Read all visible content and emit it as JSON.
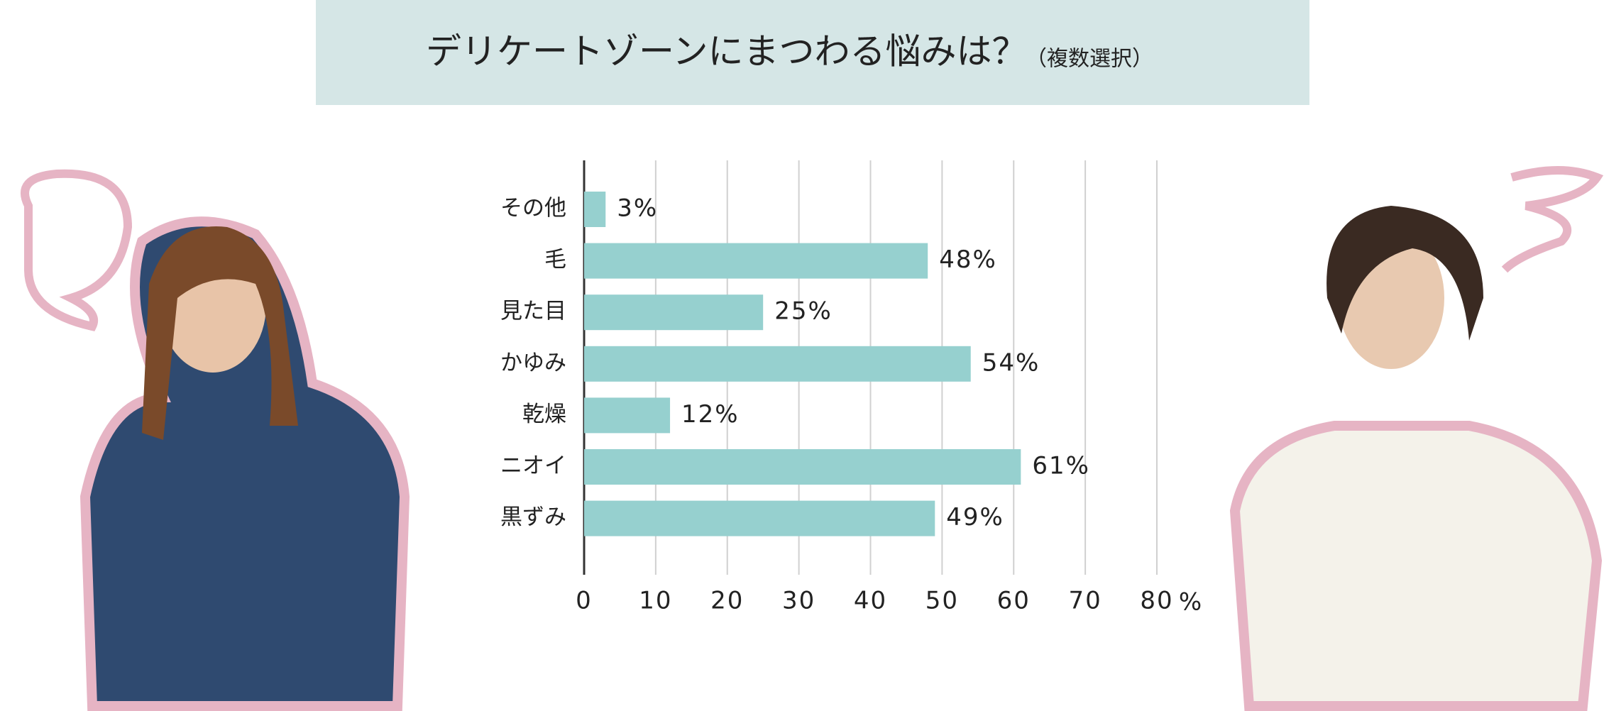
{
  "chart_data": {
    "type": "bar",
    "orientation": "horizontal",
    "title": "デリケートゾーンにまつわる悩みは？",
    "subtitle": "（複数選択）",
    "categories": [
      "その他",
      "毛",
      "見た目",
      "かゆみ",
      "乾燥",
      "ニオイ",
      "黒ずみ"
    ],
    "values": [
      3,
      48,
      25,
      54,
      12,
      61,
      49
    ],
    "value_labels": [
      "3%",
      "48%",
      "25%",
      "54%",
      "12%",
      "61%",
      "49%"
    ],
    "color": "#96d0cf",
    "xlim": [
      0,
      80
    ],
    "xticks": [
      0,
      10,
      20,
      30,
      40,
      50,
      60,
      70,
      80
    ],
    "xlabel": "%",
    "grid": true
  }
}
